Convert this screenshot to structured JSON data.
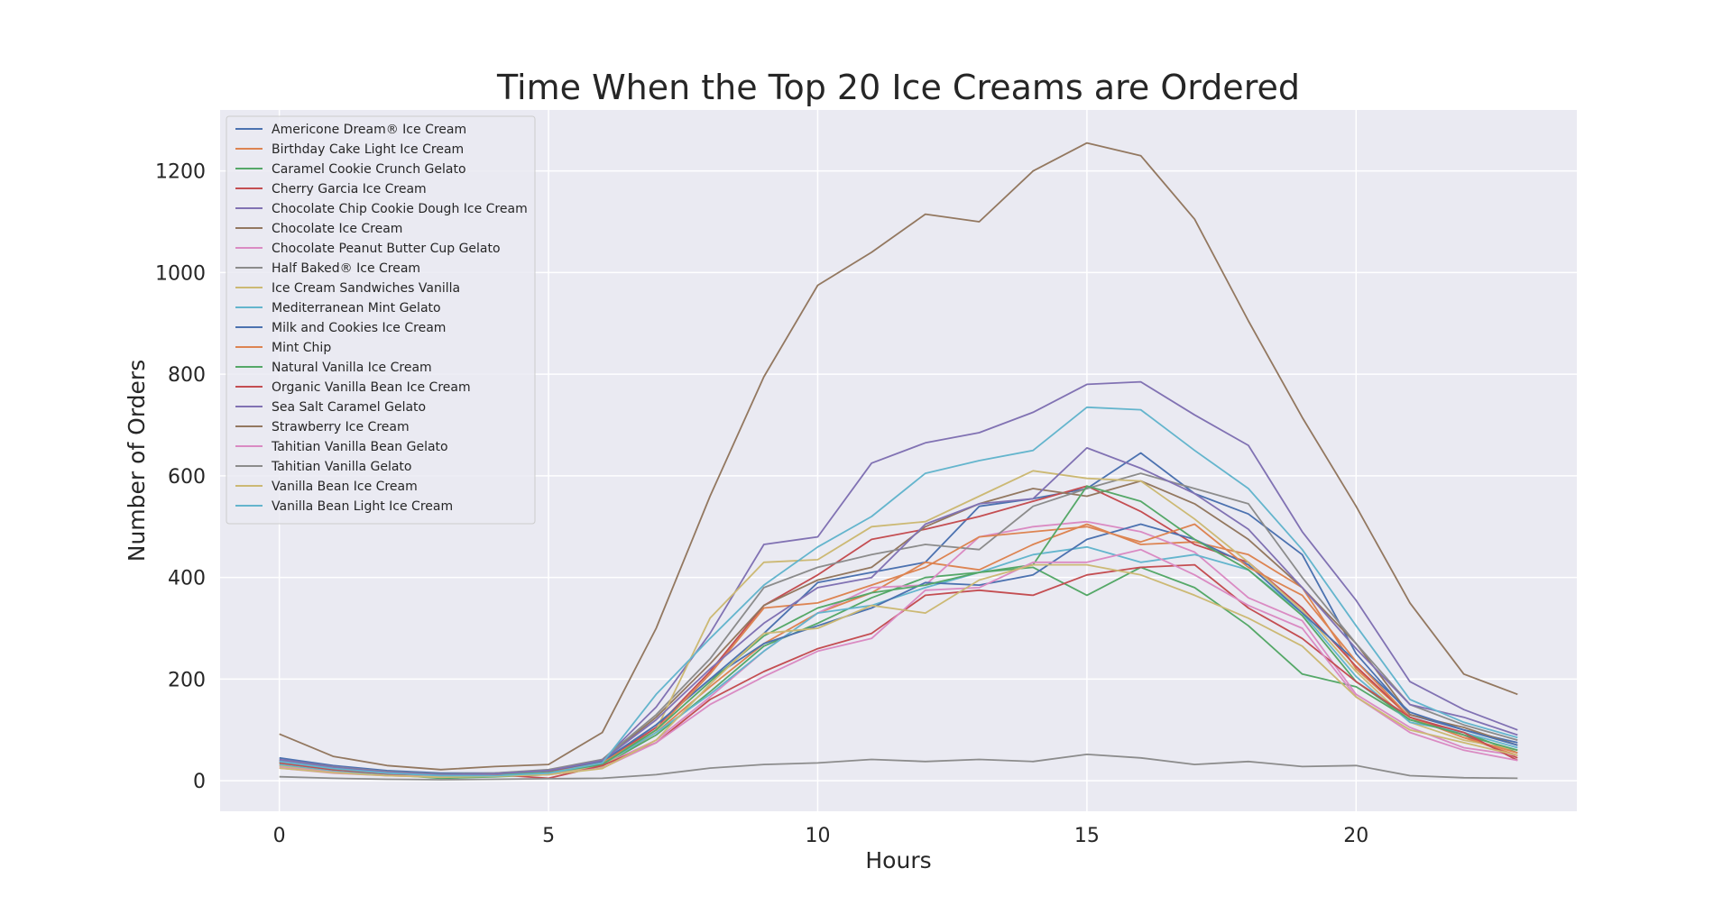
{
  "chart_data": {
    "type": "line",
    "title": "Time When the Top 20 Ice Creams are Ordered",
    "xlabel": "Hours",
    "ylabel": "Number of Orders",
    "xlim": [
      -1.1,
      24.1
    ],
    "ylim": [
      -60,
      1320
    ],
    "xticks": [
      0,
      5,
      10,
      15,
      20
    ],
    "yticks": [
      0,
      200,
      400,
      600,
      800,
      1000,
      1200
    ],
    "grid": true,
    "legend_position": "top-left",
    "x": [
      0,
      1,
      2,
      3,
      4,
      5,
      6,
      7,
      8,
      9,
      10,
      11,
      12,
      13,
      14,
      15,
      16,
      17,
      18,
      19,
      20,
      21,
      22,
      23
    ],
    "series": [
      {
        "name": "Americone Dream® Ice Cream",
        "color": "#4c72b0",
        "values": [
          45,
          30,
          20,
          15,
          15,
          20,
          35,
          110,
          200,
          290,
          390,
          410,
          430,
          540,
          555,
          575,
          645,
          565,
          525,
          445,
          250,
          130,
          100,
          75
        ]
      },
      {
        "name": "Birthday Cake Light Ice Cream",
        "color": "#dd8452",
        "values": [
          30,
          20,
          12,
          8,
          10,
          15,
          30,
          95,
          185,
          270,
          330,
          370,
          430,
          415,
          465,
          505,
          465,
          470,
          445,
          380,
          220,
          125,
          85,
          50
        ]
      },
      {
        "name": "Caramel Cookie Crunch Gelato",
        "color": "#55a868",
        "values": [
          35,
          22,
          12,
          5,
          8,
          12,
          30,
          90,
          175,
          265,
          310,
          360,
          400,
          410,
          420,
          365,
          420,
          380,
          305,
          210,
          185,
          120,
          95,
          55
        ]
      },
      {
        "name": "Cherry Garcia Ice Cream",
        "color": "#c44e52",
        "values": [
          38,
          25,
          15,
          10,
          12,
          18,
          35,
          105,
          215,
          345,
          405,
          475,
          495,
          520,
          550,
          580,
          530,
          465,
          430,
          340,
          225,
          125,
          90,
          45
        ]
      },
      {
        "name": "Chocolate Chip Cookie Dough Ice Cream",
        "color": "#8172b3",
        "values": [
          42,
          28,
          18,
          12,
          14,
          20,
          40,
          145,
          290,
          465,
          480,
          625,
          665,
          685,
          725,
          780,
          785,
          720,
          660,
          490,
          355,
          195,
          140,
          100
        ]
      },
      {
        "name": "Chocolate Ice Cream",
        "color": "#937860",
        "values": [
          40,
          27,
          16,
          12,
          14,
          20,
          40,
          125,
          230,
          345,
          395,
          420,
          500,
          545,
          575,
          560,
          590,
          545,
          475,
          380,
          270,
          130,
          105,
          70
        ]
      },
      {
        "name": "Chocolate Peanut Butter Cup Gelato",
        "color": "#da8bc3",
        "values": [
          28,
          18,
          10,
          8,
          10,
          14,
          30,
          80,
          165,
          255,
          330,
          380,
          385,
          480,
          500,
          510,
          490,
          450,
          360,
          315,
          170,
          105,
          65,
          50
        ]
      },
      {
        "name": "Half Baked® Ice Cream",
        "color": "#8c8c8c",
        "values": [
          40,
          27,
          18,
          13,
          15,
          22,
          42,
          130,
          240,
          380,
          420,
          445,
          465,
          455,
          540,
          575,
          605,
          575,
          545,
          400,
          270,
          150,
          110,
          80
        ]
      },
      {
        "name": "Ice Cream Sandwiches Vanilla",
        "color": "#ccb974",
        "values": [
          30,
          20,
          12,
          8,
          10,
          14,
          28,
          100,
          320,
          430,
          435,
          500,
          510,
          560,
          610,
          595,
          590,
          515,
          430,
          335,
          215,
          115,
          80,
          60
        ]
      },
      {
        "name": "Mediterranean Mint Gelato",
        "color": "#64b5cd",
        "values": [
          32,
          20,
          12,
          8,
          10,
          15,
          32,
          95,
          170,
          255,
          330,
          345,
          380,
          410,
          445,
          460,
          430,
          445,
          415,
          330,
          205,
          115,
          95,
          65
        ]
      },
      {
        "name": "Milk and Cookies Ice Cream",
        "color": "#4c72b0",
        "values": [
          40,
          26,
          17,
          12,
          14,
          20,
          38,
          110,
          200,
          270,
          305,
          340,
          390,
          385,
          405,
          475,
          505,
          475,
          425,
          330,
          235,
          135,
          100,
          70
        ]
      },
      {
        "name": "Mint Chip",
        "color": "#dd8452",
        "values": [
          35,
          22,
          14,
          10,
          12,
          16,
          35,
          100,
          210,
          340,
          350,
          385,
          420,
          480,
          490,
          500,
          470,
          505,
          420,
          365,
          235,
          125,
          85,
          55
        ]
      },
      {
        "name": "Natural Vanilla Ice Cream",
        "color": "#55a868",
        "values": [
          35,
          22,
          14,
          10,
          12,
          16,
          32,
          100,
          195,
          285,
          340,
          370,
          385,
          410,
          425,
          580,
          550,
          475,
          415,
          325,
          195,
          120,
          90,
          60
        ]
      },
      {
        "name": "Organic Vanilla Bean Ice Cream",
        "color": "#c44e52",
        "values": [
          35,
          22,
          14,
          10,
          12,
          5,
          30,
          75,
          160,
          215,
          260,
          290,
          365,
          375,
          365,
          405,
          420,
          425,
          340,
          280,
          195,
          125,
          95,
          40
        ]
      },
      {
        "name": "Sea Salt Caramel Gelato",
        "color": "#8172b3",
        "values": [
          40,
          26,
          17,
          12,
          14,
          20,
          40,
          120,
          220,
          310,
          380,
          400,
          505,
          545,
          555,
          655,
          615,
          565,
          495,
          380,
          260,
          150,
          125,
          90
        ]
      },
      {
        "name": "Strawberry Ice Cream",
        "color": "#937860",
        "values": [
          92,
          48,
          30,
          22,
          28,
          32,
          95,
          300,
          560,
          795,
          975,
          1040,
          1115,
          1100,
          1200,
          1255,
          1230,
          1105,
          905,
          715,
          540,
          350,
          210,
          170
        ]
      },
      {
        "name": "Tahitian Vanilla Bean Gelato",
        "color": "#da8bc3",
        "values": [
          25,
          15,
          10,
          8,
          10,
          12,
          25,
          75,
          150,
          205,
          255,
          280,
          375,
          380,
          430,
          430,
          455,
          405,
          345,
          300,
          165,
          95,
          60,
          40
        ]
      },
      {
        "name": "Tahitian Vanilla Gelato",
        "color": "#8c8c8c",
        "values": [
          8,
          5,
          3,
          2,
          3,
          4,
          5,
          12,
          25,
          32,
          35,
          42,
          38,
          42,
          38,
          52,
          45,
          32,
          38,
          28,
          30,
          10,
          6,
          5
        ]
      },
      {
        "name": "Vanilla Bean Ice Cream",
        "color": "#ccb974",
        "values": [
          25,
          16,
          10,
          7,
          9,
          12,
          24,
          80,
          190,
          290,
          300,
          345,
          330,
          395,
          425,
          425,
          405,
          365,
          320,
          265,
          165,
          100,
          75,
          50
        ]
      },
      {
        "name": "Vanilla Bean Light Ice Cream",
        "color": "#64b5cd",
        "values": [
          38,
          24,
          15,
          10,
          10,
          15,
          35,
          170,
          280,
          385,
          460,
          520,
          605,
          630,
          650,
          735,
          730,
          650,
          575,
          455,
          305,
          160,
          115,
          85
        ]
      }
    ]
  }
}
